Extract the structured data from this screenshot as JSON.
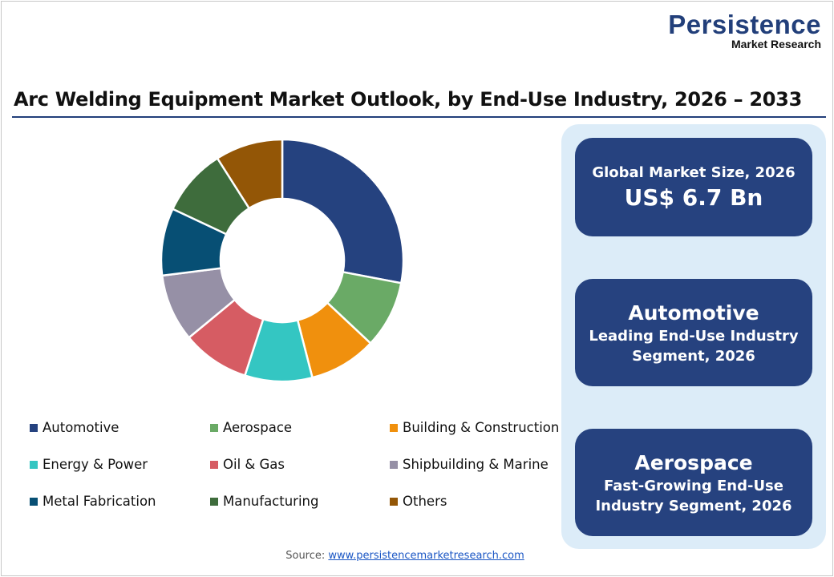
{
  "logo": {
    "line1": "Persistence",
    "line2": "Market Research"
  },
  "title": "Arc Welding Equipment Market Outlook, by End-Use Industry, 2026 – 2033",
  "chart_data": {
    "type": "pie",
    "donut": true,
    "categories": [
      "Automotive",
      "Aerospace",
      "Building & Construction",
      "Energy & Power",
      "Oil & Gas",
      "Shipbuilding & Marine",
      "Metal Fabrication",
      "Manufacturing",
      "Others"
    ],
    "values": [
      28,
      9,
      9,
      9,
      9,
      9,
      9,
      9,
      9
    ],
    "colors": [
      "#25427f",
      "#6aaa66",
      "#f0900d",
      "#34c6c2",
      "#d65c63",
      "#9690a6",
      "#074f74",
      "#3e6c3c",
      "#935606"
    ],
    "legend_position": "bottom"
  },
  "cards": [
    {
      "line1": "Global Market Size, 2026",
      "line2": "US$ 6.7 Bn"
    },
    {
      "line1": "Automotive",
      "line2": "Leading End-Use Industry",
      "line3": "Segment, 2026"
    },
    {
      "line1": "Aerospace",
      "line2": "Fast-Growing End-Use",
      "line3": "Industry Segment, 2026"
    }
  ],
  "source": {
    "label": "Source:",
    "link": "www.persistencemarketresearch.com"
  }
}
